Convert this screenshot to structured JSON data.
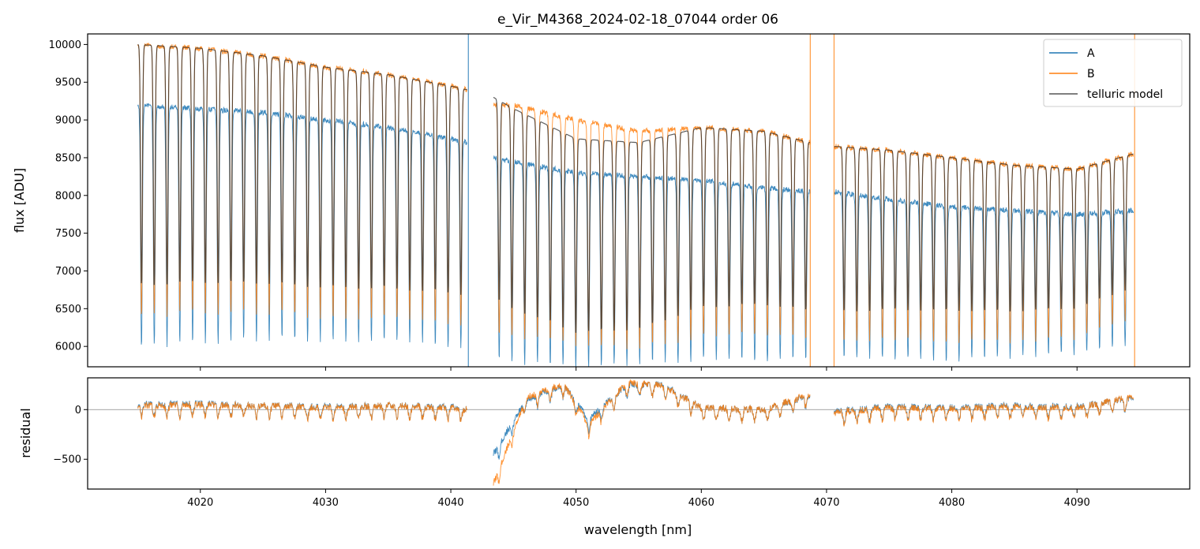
{
  "chart_data": [
    {
      "type": "line",
      "title": "e_Vir_M4368_2024-02-18_07044  order 06",
      "xlabel": "",
      "ylabel": "flux [ADU]",
      "xlim": [
        4011,
        4099
      ],
      "ylim": [
        5730,
        10140
      ],
      "yticks": [
        6000,
        6500,
        7000,
        7500,
        8000,
        8500,
        9000,
        9500,
        10000
      ],
      "xticks": [
        4020,
        4030,
        4040,
        4050,
        4060,
        4070,
        4080,
        4090
      ],
      "legend": {
        "placement": "top-right",
        "entries": [
          "A",
          "B",
          "telluric model"
        ]
      },
      "colors": {
        "A": "#1f77b4",
        "B": "#ff7f0e",
        "telluric model": "#555555"
      },
      "segments": [
        {
          "x_range": [
            4015.0,
            4041.3
          ],
          "series": [
            {
              "name": "A",
              "x": [
                4015.0,
                4020.0,
                4025.0,
                4030.0,
                4035.0,
                4040.0,
                4041.3
              ],
              "y": [
                9200,
                9150,
                9100,
                9000,
                8900,
                8750,
                8700
              ]
            },
            {
              "name": "B",
              "x": [
                4015.0,
                4020.0,
                4025.0,
                4030.0,
                4035.0,
                4040.0,
                4041.3
              ],
              "y": [
                10000,
                9950,
                9850,
                9700,
                9600,
                9450,
                9400
              ]
            }
          ]
        },
        {
          "x_range": [
            4043.4,
            4068.7
          ],
          "series": [
            {
              "name": "A",
              "x": [
                4043.4,
                4045.0,
                4050.0,
                4055.0,
                4060.0,
                4065.0,
                4068.7
              ],
              "y": [
                8500,
                8450,
                8300,
                8250,
                8200,
                8100,
                8050
              ]
            },
            {
              "name": "B",
              "x": [
                4043.4,
                4045.0,
                4050.0,
                4055.0,
                4060.0,
                4065.0,
                4068.7
              ],
              "y": [
                9200,
                9200,
                9000,
                8850,
                8900,
                8850,
                8700
              ]
            },
            {
              "name": "telluric model",
              "x": [
                4043.4,
                4045.0,
                4050.0,
                4055.0,
                4060.0,
                4065.0,
                4068.7
              ],
              "y": [
                9300,
                9150,
                8750,
                8700,
                8900,
                8850,
                8700
              ]
            }
          ]
        },
        {
          "x_range": [
            4070.6,
            4094.5
          ],
          "series": [
            {
              "name": "A",
              "x": [
                4070.6,
                4075.0,
                4080.0,
                4085.0,
                4090.0,
                4094.5
              ],
              "y": [
                8050,
                7950,
                7850,
                7800,
                7750,
                7800
              ]
            },
            {
              "name": "B",
              "x": [
                4070.6,
                4075.0,
                4080.0,
                4085.0,
                4090.0,
                4094.5
              ],
              "y": [
                8650,
                8600,
                8500,
                8400,
                8350,
                8550
              ]
            }
          ]
        }
      ],
      "spikes": [
        {
          "x": 4041.4,
          "ymin": 5730,
          "ymax": 10140,
          "series": "A"
        },
        {
          "x": 4068.7,
          "ymin": 5730,
          "ymax": 10140,
          "series": "B"
        },
        {
          "x": 4070.6,
          "ymin": 5730,
          "ymax": 10140,
          "series": "B"
        },
        {
          "x": 4094.6,
          "ymin": 5730,
          "ymax": 10140,
          "series": "B"
        }
      ]
    },
    {
      "type": "line",
      "title": "",
      "xlabel": "wavelength [nm]",
      "ylabel": "residual",
      "xlim": [
        4011,
        4099
      ],
      "ylim": [
        -800,
        320
      ],
      "yticks": [
        -500,
        0
      ],
      "ytick_labels": [
        "−500",
        "0"
      ],
      "xticks": [
        4020,
        4030,
        4040,
        4050,
        4060,
        4070,
        4080,
        4090
      ],
      "xtick_labels": [
        "4020",
        "4030",
        "4040",
        "4050",
        "4060",
        "4070",
        "4080",
        "4090"
      ],
      "zero_line": true,
      "segments": [
        {
          "x_range": [
            4015.0,
            4041.3
          ],
          "series": [
            {
              "name": "A",
              "x": [
                4015.0,
                4020.0,
                4025.0,
                4030.0,
                4035.0,
                4040.0,
                4041.3
              ],
              "y": [
                50,
                60,
                40,
                30,
                40,
                30,
                0
              ]
            },
            {
              "name": "B",
              "x": [
                4015.0,
                4020.0,
                4025.0,
                4030.0,
                4035.0,
                4040.0,
                4041.3
              ],
              "y": [
                40,
                50,
                40,
                20,
                40,
                20,
                0
              ]
            }
          ]
        },
        {
          "x_range": [
            4043.4,
            4068.7
          ],
          "series": [
            {
              "name": "A",
              "x": [
                4043.4,
                4046.0,
                4049.0,
                4051.0,
                4054.0,
                4057.0,
                4060.0,
                4065.0,
                4068.7
              ],
              "y": [
                -450,
                100,
                250,
                -100,
                250,
                250,
                20,
                0,
                150
              ]
            },
            {
              "name": "B",
              "x": [
                4043.4,
                4046.0,
                4049.0,
                4051.0,
                4054.0,
                4057.0,
                4060.0,
                4065.0,
                4068.7
              ],
              "y": [
                -750,
                120,
                260,
                -150,
                270,
                240,
                20,
                0,
                160
              ]
            }
          ]
        },
        {
          "x_range": [
            4070.6,
            4094.5
          ],
          "series": [
            {
              "name": "A",
              "x": [
                4070.6,
                4075.0,
                4080.0,
                4085.0,
                4090.0,
                4094.5
              ],
              "y": [
                -20,
                30,
                20,
                40,
                30,
                120
              ]
            },
            {
              "name": "B",
              "x": [
                4070.6,
                4075.0,
                4080.0,
                4085.0,
                4090.0,
                4094.5
              ],
              "y": [
                -30,
                20,
                10,
                30,
                20,
                130
              ]
            }
          ]
        }
      ]
    }
  ]
}
